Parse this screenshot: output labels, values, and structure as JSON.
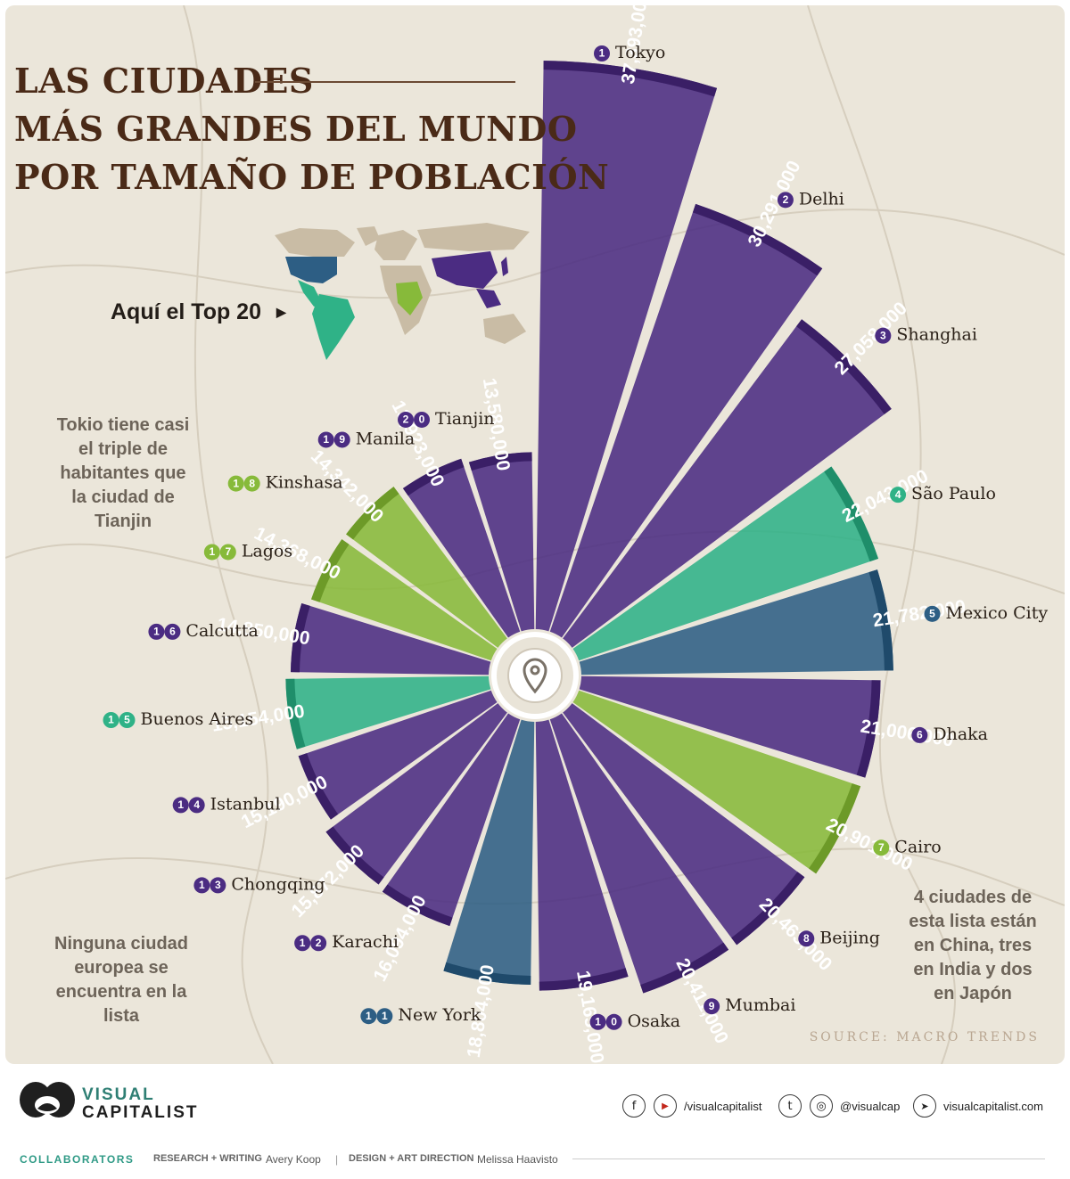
{
  "title": {
    "line1": "LAS CIUDADES",
    "line2": "MÁS GRANDES DEL MUNDO",
    "line3": "POR TAMAÑO DE POBLACIÓN"
  },
  "callout": "Aquí el Top 20",
  "notes": {
    "tokyo_line1": "Tokio tiene casi",
    "tokyo_line2": "el triple de",
    "tokyo_line3": "habitantes que",
    "tokyo_line4": "la ciudad de",
    "tokyo_line5": "Tianjin",
    "europe_line1": "Ninguna ciudad",
    "europe_line2": "europea se",
    "europe_line3": "encuentra en la",
    "europe_line4": "lista",
    "china_line1": "4 ciudades de",
    "china_line2": "esta lista están",
    "china_line3": "en China, tres",
    "china_line4": "en India y dos",
    "china_line5": "en Japón"
  },
  "source": "SOURCE:  MACRO TRENDS",
  "colors": {
    "asia": "#4b2c82",
    "south_america": "#2fb287",
    "north_america": "#2d5e84",
    "africa": "#87ba3a",
    "text_brown": "#4a2a17",
    "background": "#ebe6da"
  },
  "chart_data": {
    "type": "bar",
    "title": "LAS CIUDADES MÁS GRANDES DEL MUNDO POR TAMAÑO DE POBLACIÓN",
    "categories": [
      "Tokyo",
      "Delhi",
      "Shanghai",
      "São Paulo",
      "Mexico City",
      "Dhaka",
      "Cairo",
      "Beijing",
      "Mumbai",
      "Osaka",
      "New York",
      "Karachi",
      "Chongqing",
      "Istanbul",
      "Buenos Aires",
      "Calcutta",
      "Lagos",
      "Kinshasa",
      "Manila",
      "Tianjin"
    ],
    "ranks": [
      "1",
      "2",
      "3",
      "4",
      "5",
      "6",
      "7",
      "8",
      "9",
      "10",
      "11",
      "12",
      "13",
      "14",
      "15",
      "16",
      "17",
      "18",
      "19",
      "20"
    ],
    "values": [
      37393000,
      30291000,
      27058000,
      22043000,
      21782000,
      21006000,
      20901000,
      20463000,
      20411000,
      19165000,
      18804000,
      16094000,
      15872000,
      15190000,
      15154000,
      14850000,
      14368000,
      14342000,
      13923000,
      13580000
    ],
    "value_labels": [
      "37,393,000",
      "30,291,000",
      "27,058,000",
      "22,043,000",
      "21,782,000",
      "21,006,000",
      "20,901,000",
      "20,463,000",
      "20,411,000",
      "19,165,000",
      "18,804,000",
      "16,094,000",
      "15,872,000",
      "15,190,000",
      "15,154,000",
      "14,850,000",
      "14,368,000",
      "14,342,000",
      "13,923,000",
      "13,580,000"
    ],
    "regions": [
      "asia",
      "asia",
      "asia",
      "south_america",
      "north_america",
      "asia",
      "africa",
      "asia",
      "asia",
      "asia",
      "north_america",
      "asia",
      "asia",
      "asia",
      "south_america",
      "asia",
      "africa",
      "africa",
      "asia",
      "asia"
    ]
  },
  "footer": {
    "brand_line1": "VISUAL",
    "brand_line2": "CAPITALIST",
    "social1": "/visualcapitalist",
    "social2": "@visualcap",
    "social3": "visualcapitalist.com",
    "facebook_glyph": "f",
    "youtube_glyph": "▶",
    "twitter_glyph": "t",
    "instagram_glyph": "◎",
    "cursor_glyph": "➤",
    "collaborators": "COLLABORATORS",
    "research_label": "RESEARCH + WRITING",
    "research_name": "Avery Koop",
    "separator": "|",
    "design_label": "DESIGN + ART DIRECTION",
    "design_name": "Melissa Haavisto"
  }
}
